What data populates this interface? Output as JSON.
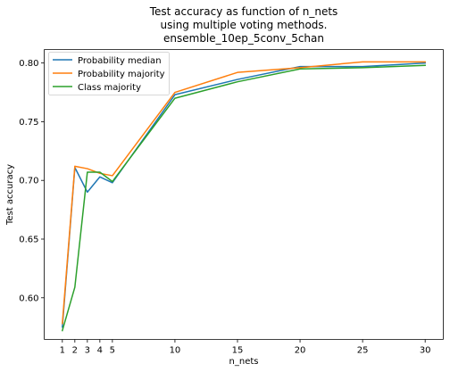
{
  "chart_data": {
    "type": "line",
    "title": [
      "Test accuracy as function of n_nets",
      "using multiple voting methods.",
      "ensemble_10ep_5conv_5chan"
    ],
    "xlabel": "n_nets",
    "ylabel": "Test accuracy",
    "x": [
      1,
      2,
      3,
      4,
      5,
      10,
      15,
      20,
      25,
      30
    ],
    "xticks": [
      1,
      2,
      3,
      4,
      5,
      10,
      15,
      20,
      25,
      30
    ],
    "xlim": [
      -0.45,
      31.45
    ],
    "yticks": [
      0.6,
      0.65,
      0.7,
      0.75,
      0.8
    ],
    "ytick_labels": [
      "0.60",
      "0.65",
      "0.70",
      "0.75",
      "0.80"
    ],
    "ylim": [
      0.5645,
      0.8115
    ],
    "grid": false,
    "legend": "top-left",
    "series": [
      {
        "name": "Probability median",
        "color": "#1f77b4",
        "values": [
          0.575,
          0.711,
          0.69,
          0.703,
          0.698,
          0.773,
          0.786,
          0.797,
          0.797,
          0.8
        ]
      },
      {
        "name": "Probability majority",
        "color": "#ff7f0e",
        "values": [
          0.578,
          0.712,
          0.71,
          0.706,
          0.704,
          0.775,
          0.792,
          0.796,
          0.801,
          0.801
        ]
      },
      {
        "name": "Class majority",
        "color": "#2ca02c",
        "values": [
          0.572,
          0.609,
          0.707,
          0.707,
          0.699,
          0.77,
          0.784,
          0.795,
          0.796,
          0.798
        ]
      }
    ]
  }
}
